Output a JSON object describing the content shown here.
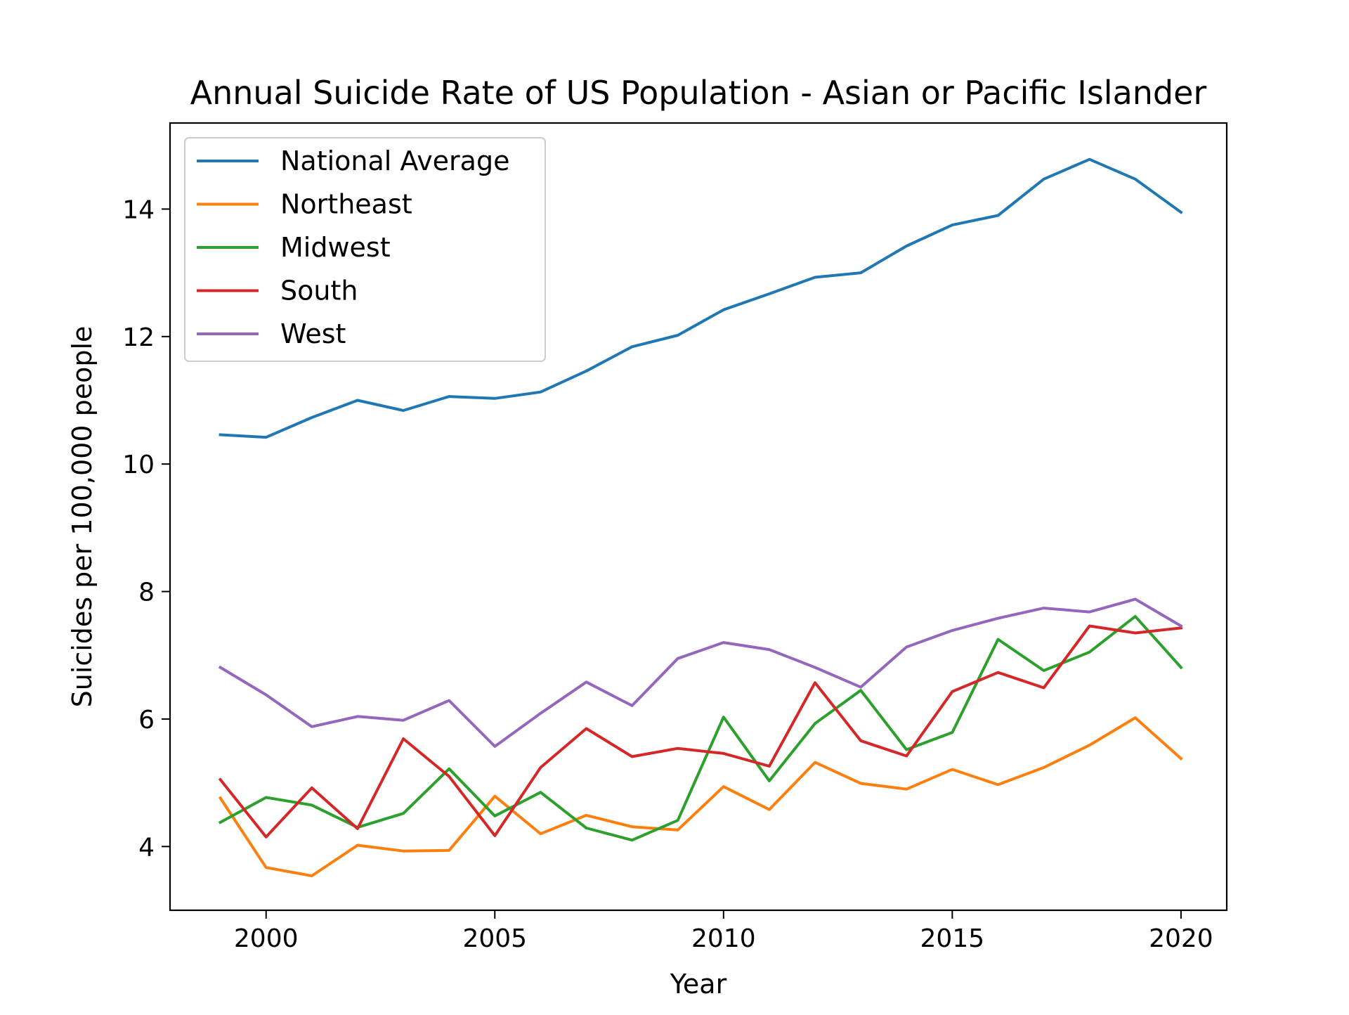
{
  "chart_data": {
    "type": "line",
    "title": "Annual Suicide Rate of US Population - Asian or Pacific Islander",
    "xlabel": "Year",
    "ylabel": "Suicides per 100,000 people",
    "xlim": [
      1997.9,
      2021.0
    ],
    "ylim": [
      3.0,
      15.35
    ],
    "x_ticks": [
      2000,
      2005,
      2010,
      2015,
      2020
    ],
    "y_ticks": [
      4,
      6,
      8,
      10,
      12,
      14
    ],
    "grid": false,
    "legend_position": "top-left",
    "x": [
      1999,
      2000,
      2001,
      2002,
      2003,
      2004,
      2005,
      2006,
      2007,
      2008,
      2009,
      2010,
      2011,
      2012,
      2013,
      2014,
      2015,
      2016,
      2017,
      2018,
      2019,
      2020
    ],
    "series": [
      {
        "name": "National Average",
        "color": "#1f77b4",
        "values": [
          10.46,
          10.42,
          10.73,
          11.0,
          10.84,
          11.06,
          11.03,
          11.13,
          11.46,
          11.84,
          12.02,
          12.42,
          12.67,
          12.93,
          13.0,
          13.42,
          13.75,
          13.9,
          14.47,
          14.78,
          14.47,
          13.95
        ]
      },
      {
        "name": "Northeast",
        "color": "#ff7f0e",
        "values": [
          4.76,
          3.67,
          3.54,
          4.02,
          3.93,
          3.94,
          4.79,
          4.2,
          4.49,
          4.31,
          4.26,
          4.94,
          4.58,
          5.32,
          4.99,
          4.9,
          5.21,
          4.97,
          5.24,
          5.59,
          6.02,
          5.38
        ]
      },
      {
        "name": "Midwest",
        "color": "#2ca02c",
        "values": [
          4.38,
          4.77,
          4.65,
          4.3,
          4.52,
          5.22,
          4.48,
          4.85,
          4.29,
          4.1,
          4.41,
          6.03,
          5.03,
          5.93,
          6.45,
          5.52,
          5.79,
          7.25,
          6.76,
          7.05,
          7.61,
          6.81
        ]
      },
      {
        "name": "South",
        "color": "#d62728",
        "values": [
          5.05,
          4.15,
          4.92,
          4.28,
          5.69,
          5.1,
          4.17,
          5.24,
          5.85,
          5.41,
          5.54,
          5.46,
          5.26,
          6.57,
          5.66,
          5.42,
          6.43,
          6.73,
          6.49,
          7.46,
          7.35,
          7.43
        ]
      },
      {
        "name": "West",
        "color": "#9467bd",
        "values": [
          6.81,
          6.38,
          5.88,
          6.04,
          5.98,
          6.29,
          5.57,
          6.09,
          6.58,
          6.21,
          6.95,
          7.2,
          7.09,
          6.81,
          6.5,
          7.13,
          7.39,
          7.58,
          7.74,
          7.68,
          7.88,
          7.46
        ]
      }
    ]
  }
}
